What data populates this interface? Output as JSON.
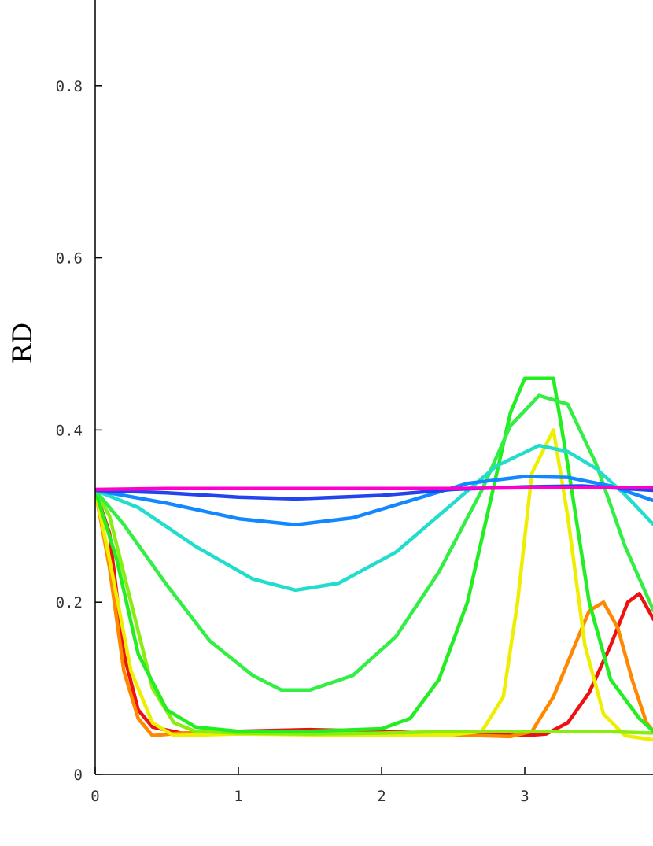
{
  "chart_data": {
    "type": "line",
    "title": "",
    "xlabel": "",
    "ylabel": "RD",
    "xlim": [
      0,
      3.9
    ],
    "ylim": [
      0,
      0.9
    ],
    "x_ticks": [
      "0",
      "1",
      "2",
      "3"
    ],
    "y_ticks": [
      "0",
      "0.2",
      "0.4",
      "0.6",
      "0.8"
    ],
    "grid": false,
    "series": [
      {
        "color": "#ff00cc",
        "points": [
          [
            0,
            0.331
          ],
          [
            0.5,
            0.332
          ],
          [
            1,
            0.332
          ],
          [
            1.5,
            0.332
          ],
          [
            2,
            0.332
          ],
          [
            2.5,
            0.332
          ],
          [
            3,
            0.333
          ],
          [
            3.5,
            0.333
          ],
          [
            3.9,
            0.333
          ]
        ]
      },
      {
        "color": "#2244ee",
        "points": [
          [
            0,
            0.33
          ],
          [
            0.5,
            0.327
          ],
          [
            1,
            0.322
          ],
          [
            1.4,
            0.32
          ],
          [
            2,
            0.324
          ],
          [
            2.5,
            0.331
          ],
          [
            3,
            0.334
          ],
          [
            3.4,
            0.335
          ],
          [
            3.9,
            0.33
          ]
        ]
      },
      {
        "color": "#1188ff",
        "points": [
          [
            0,
            0.33
          ],
          [
            0.5,
            0.315
          ],
          [
            1,
            0.297
          ],
          [
            1.4,
            0.29
          ],
          [
            1.8,
            0.298
          ],
          [
            2.2,
            0.318
          ],
          [
            2.6,
            0.338
          ],
          [
            3,
            0.346
          ],
          [
            3.3,
            0.345
          ],
          [
            3.6,
            0.335
          ],
          [
            3.9,
            0.318
          ]
        ]
      },
      {
        "color": "#22ddcc",
        "points": [
          [
            0,
            0.33
          ],
          [
            0.3,
            0.31
          ],
          [
            0.7,
            0.265
          ],
          [
            1.1,
            0.227
          ],
          [
            1.4,
            0.214
          ],
          [
            1.7,
            0.222
          ],
          [
            2.1,
            0.258
          ],
          [
            2.5,
            0.315
          ],
          [
            2.8,
            0.358
          ],
          [
            3.1,
            0.382
          ],
          [
            3.3,
            0.375
          ],
          [
            3.5,
            0.355
          ],
          [
            3.7,
            0.325
          ],
          [
            3.9,
            0.29
          ]
        ]
      },
      {
        "color": "#33ee44",
        "points": [
          [
            0,
            0.33
          ],
          [
            0.2,
            0.29
          ],
          [
            0.5,
            0.22
          ],
          [
            0.8,
            0.155
          ],
          [
            1.1,
            0.115
          ],
          [
            1.3,
            0.098
          ],
          [
            1.5,
            0.098
          ],
          [
            1.8,
            0.115
          ],
          [
            2.1,
            0.16
          ],
          [
            2.4,
            0.235
          ],
          [
            2.7,
            0.33
          ],
          [
            2.9,
            0.405
          ],
          [
            3.1,
            0.44
          ],
          [
            3.3,
            0.43
          ],
          [
            3.5,
            0.36
          ],
          [
            3.7,
            0.265
          ],
          [
            3.9,
            0.19
          ]
        ]
      },
      {
        "color": "#22ee22",
        "points": [
          [
            0,
            0.33
          ],
          [
            0.15,
            0.25
          ],
          [
            0.3,
            0.14
          ],
          [
            0.5,
            0.075
          ],
          [
            0.7,
            0.055
          ],
          [
            1,
            0.05
          ],
          [
            1.5,
            0.05
          ],
          [
            2,
            0.053
          ],
          [
            2.2,
            0.065
          ],
          [
            2.4,
            0.11
          ],
          [
            2.6,
            0.2
          ],
          [
            2.75,
            0.31
          ],
          [
            2.9,
            0.42
          ],
          [
            3,
            0.46
          ],
          [
            3.2,
            0.46
          ],
          [
            3.3,
            0.36
          ],
          [
            3.45,
            0.2
          ],
          [
            3.6,
            0.11
          ],
          [
            3.8,
            0.065
          ],
          [
            3.9,
            0.05
          ]
        ]
      },
      {
        "color": "#88ee11",
        "points": [
          [
            0,
            0.33
          ],
          [
            0.1,
            0.3
          ],
          [
            0.25,
            0.2
          ],
          [
            0.4,
            0.1
          ],
          [
            0.55,
            0.06
          ],
          [
            0.7,
            0.05
          ],
          [
            1,
            0.048
          ],
          [
            1.5,
            0.047
          ],
          [
            2,
            0.048
          ],
          [
            2.5,
            0.05
          ],
          [
            3,
            0.05
          ],
          [
            3.5,
            0.05
          ],
          [
            3.9,
            0.048
          ]
        ]
      },
      {
        "color": "#eeee00",
        "points": [
          [
            0,
            0.33
          ],
          [
            0.1,
            0.25
          ],
          [
            0.25,
            0.12
          ],
          [
            0.4,
            0.06
          ],
          [
            0.55,
            0.045
          ],
          [
            1,
            0.047
          ],
          [
            2,
            0.045
          ],
          [
            2.5,
            0.046
          ],
          [
            2.7,
            0.05
          ],
          [
            2.85,
            0.09
          ],
          [
            2.95,
            0.2
          ],
          [
            3.05,
            0.35
          ],
          [
            3.2,
            0.4
          ],
          [
            3.3,
            0.3
          ],
          [
            3.42,
            0.15
          ],
          [
            3.55,
            0.07
          ],
          [
            3.7,
            0.045
          ],
          [
            3.9,
            0.04
          ]
        ]
      },
      {
        "color": "#ff8800",
        "points": [
          [
            0,
            0.33
          ],
          [
            0.1,
            0.24
          ],
          [
            0.2,
            0.12
          ],
          [
            0.3,
            0.065
          ],
          [
            0.4,
            0.045
          ],
          [
            0.6,
            0.048
          ],
          [
            1,
            0.05
          ],
          [
            2,
            0.047
          ],
          [
            2.5,
            0.046
          ],
          [
            2.9,
            0.044
          ],
          [
            3.05,
            0.05
          ],
          [
            3.2,
            0.09
          ],
          [
            3.35,
            0.15
          ],
          [
            3.45,
            0.19
          ],
          [
            3.55,
            0.2
          ],
          [
            3.65,
            0.17
          ],
          [
            3.75,
            0.11
          ],
          [
            3.85,
            0.06
          ],
          [
            3.9,
            0.05
          ]
        ]
      },
      {
        "color": "#ee1111",
        "points": [
          [
            0,
            0.33
          ],
          [
            0.1,
            0.28
          ],
          [
            0.2,
            0.14
          ],
          [
            0.3,
            0.075
          ],
          [
            0.4,
            0.055
          ],
          [
            0.6,
            0.048
          ],
          [
            1,
            0.05
          ],
          [
            1.5,
            0.052
          ],
          [
            2,
            0.05
          ],
          [
            2.5,
            0.047
          ],
          [
            3,
            0.045
          ],
          [
            3.15,
            0.047
          ],
          [
            3.3,
            0.06
          ],
          [
            3.45,
            0.095
          ],
          [
            3.6,
            0.15
          ],
          [
            3.72,
            0.2
          ],
          [
            3.8,
            0.21
          ],
          [
            3.9,
            0.18
          ]
        ]
      }
    ]
  }
}
